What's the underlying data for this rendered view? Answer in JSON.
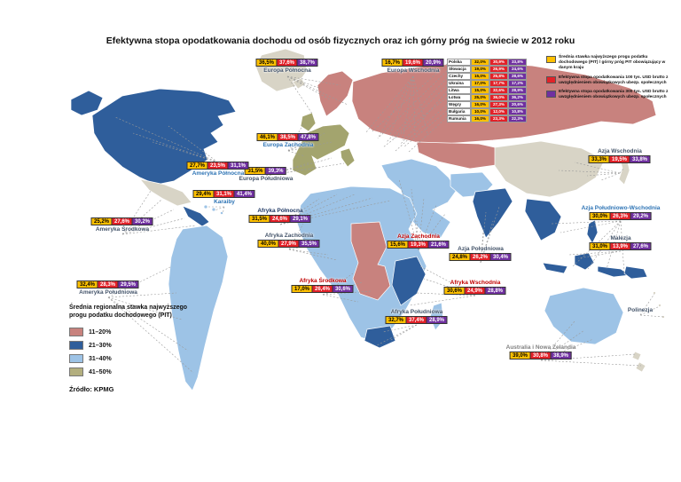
{
  "title": "Efektywna stopa opodatkowania dochodu od osób fizycznych oraz ich górny próg na świecie w 2012 roku",
  "value_colors": [
    "#FFC000",
    "#E22128",
    "#7030A0"
  ],
  "series_legend": {
    "items": [
      {
        "color": "#FFC000",
        "label": "Średnia stawka najwyższego progu podatku dochodowego (PIT) / górny próg PIT obowiązujący w danym kraju"
      },
      {
        "color": "#E22128",
        "label": "Efektywna stopa opodatkowania 100 tys. USD brutto z uwzględnieniem obowiązkowych ubezp. społecznych"
      },
      {
        "color": "#7030A0",
        "label": "Efektywna stopa opodatkowania 300 tys. USD brutto z uwzględnieniem obowiązkowych ubezp. społecznych"
      }
    ]
  },
  "country_table": {
    "rows": [
      {
        "name": "Polska",
        "values": [
          "32,0%",
          "30,9%",
          "33,8%"
        ]
      },
      {
        "name": "Słowacja",
        "values": [
          "19,0%",
          "26,9%",
          "24,6%"
        ]
      },
      {
        "name": "Czechy",
        "values": [
          "15,0%",
          "25,8%",
          "28,6%"
        ]
      },
      {
        "name": "Ukraina",
        "values": [
          "17,0%",
          "17,7%",
          "17,2%"
        ]
      },
      {
        "name": "Litwa",
        "values": [
          "15,0%",
          "32,6%",
          "28,9%"
        ]
      },
      {
        "name": "Łotwa",
        "values": [
          "25,0%",
          "36,0%",
          "36,2%"
        ]
      },
      {
        "name": "Węgry",
        "values": [
          "16,0%",
          "27,3%",
          "20,6%"
        ]
      },
      {
        "name": "Bułgaria",
        "values": [
          "10,0%",
          "12,0%",
          "10,8%"
        ]
      },
      {
        "name": "Rumunia",
        "values": [
          "16,0%",
          "23,3%",
          "22,3%"
        ]
      }
    ]
  },
  "regions": [
    {
      "id": "europa-polnocna",
      "name": "Europa Północna",
      "label_color": "#44546A",
      "values": [
        "36,5%",
        "37,6%",
        "38,7%"
      ]
    },
    {
      "id": "europa-wschodnia",
      "name": "Europa Wschodnia",
      "label_color": "#44546A",
      "values": [
        "16,7%",
        "19,6%",
        "20,9%"
      ]
    },
    {
      "id": "europa-zachodnia",
      "name": "Europa Zachodnia",
      "label_color": "#2E74B5",
      "values": [
        "46,1%",
        "38,5%",
        "47,8%"
      ]
    },
    {
      "id": "europa-poludniowa",
      "name": "Europa Południowa",
      "label_color": "#44546A",
      "values": [
        "31,5%",
        "39,3%"
      ],
      "colors": [
        "#FFC000",
        "#7030A0"
      ]
    },
    {
      "id": "ameryka-polnocna",
      "name": "Ameryka Północna",
      "label_color": "#2E74B5",
      "values": [
        "27,7%",
        "23,5%",
        "31,1%"
      ]
    },
    {
      "id": "karaiby",
      "name": "Karaiby",
      "label_color": "#2E74B5",
      "values": [
        "29,4%",
        "31,1%",
        "41,4%"
      ]
    },
    {
      "id": "ameryka-srodkowa",
      "name": "Ameryka Środkowa",
      "label_color": "#44546A",
      "values": [
        "25,2%",
        "27,6%",
        "30,2%"
      ]
    },
    {
      "id": "ameryka-poludniowa",
      "name": "Ameryka Południowa",
      "label_color": "#44546A",
      "values": [
        "32,4%",
        "28,3%",
        "29,5%"
      ]
    },
    {
      "id": "afryka-polnocna",
      "name": "Afryka Północna",
      "label_color": "#1F3864",
      "values": [
        "31,5%",
        "24,6%",
        "29,1%"
      ]
    },
    {
      "id": "afryka-zachodnia",
      "name": "Afryka Zachodnia",
      "label_color": "#44546A",
      "values": [
        "40,0%",
        "27,9%",
        "35,5%"
      ]
    },
    {
      "id": "afryka-srodkowa",
      "name": "Afryka Środkowa",
      "label_color": "#C00000",
      "values": [
        "17,0%",
        "26,4%",
        "30,6%"
      ]
    },
    {
      "id": "afryka-wschodnia",
      "name": "Afryka Wschodnia",
      "label_color": "#C00000",
      "values": [
        "30,6%",
        "24,9%",
        "28,8%"
      ]
    },
    {
      "id": "afryka-poludniowa",
      "name": "Afryka Południowa",
      "label_color": "#44546A",
      "values": [
        "32,7%",
        "37,4%",
        "28,9%"
      ]
    },
    {
      "id": "azja-zachodnia",
      "name": "Azja Zachodnia",
      "label_color": "#C00000",
      "values": [
        "15,6%",
        "19,3%",
        "21,6%"
      ]
    },
    {
      "id": "azja-poludniowa",
      "name": "Azja Południowa",
      "label_color": "#44546A",
      "values": [
        "24,8%",
        "26,2%",
        "30,4%"
      ]
    },
    {
      "id": "azja-wschodnia",
      "name": "Azja Wschodnia",
      "label_color": "#44546A",
      "values": [
        "33,3%",
        "19,5%",
        "33,8%"
      ]
    },
    {
      "id": "azja-pd-wschodnia",
      "name": "Azja Południowo-Wschodnia",
      "label_color": "#2E74B5",
      "values": [
        "30,0%",
        "26,3%",
        "29,2%"
      ]
    },
    {
      "id": "malezja",
      "name": "Malezja",
      "label_color": "#44546A",
      "values": [
        "31,0%",
        "13,9%",
        "27,6%"
      ]
    },
    {
      "id": "polinezja",
      "name": "Polinezja",
      "label_color": "#44546A",
      "values": []
    },
    {
      "id": "australia-nz",
      "name": "Australia i Nowa Zelandia",
      "label_color": "#808080",
      "values": [
        "39,0%",
        "30,8%",
        "38,9%"
      ]
    }
  ],
  "map_legend": {
    "title": "Średnia regionalna stawka najwyższego progu podatku dochodowego (PIT)",
    "items": [
      {
        "color": "#C8827E",
        "label": "11–20%"
      },
      {
        "color": "#2F5E9B",
        "label": "21–30%"
      },
      {
        "color": "#9DC3E6",
        "label": "31–40%"
      },
      {
        "color": "#B3AF7F",
        "label": "41–50%"
      }
    ]
  },
  "source": "Źródło: KPMG"
}
